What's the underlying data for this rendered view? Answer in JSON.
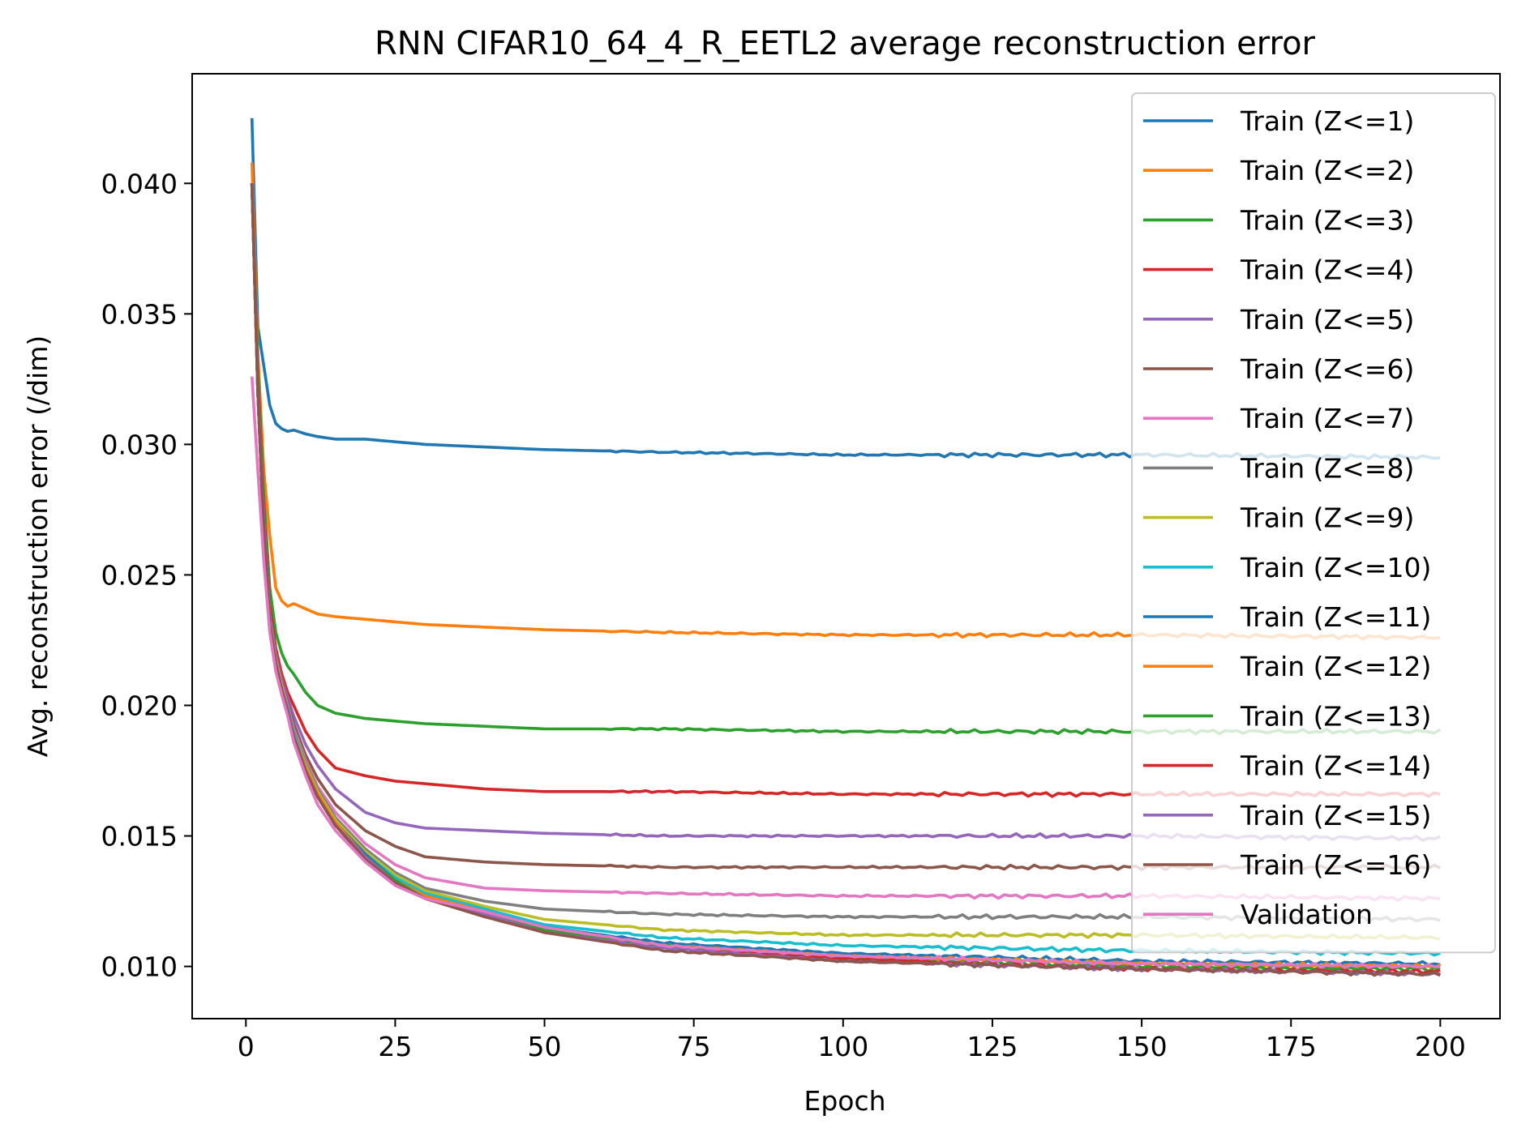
{
  "chart_data": {
    "type": "line",
    "title": "RNN CIFAR10_64_4_R_EETL2 average reconstruction error",
    "xlabel": "Epoch",
    "ylabel": "Avg. reconstruction error (/dim)",
    "xlim": [
      -9,
      210
    ],
    "ylim": [
      0.008,
      0.0442
    ],
    "xticks": [
      0,
      25,
      50,
      75,
      100,
      125,
      150,
      175,
      200
    ],
    "xtick_labels": [
      "0",
      "25",
      "50",
      "75",
      "100",
      "125",
      "150",
      "175",
      "200"
    ],
    "yticks": [
      0.01,
      0.015,
      0.02,
      0.025,
      0.03,
      0.035,
      0.04
    ],
    "ytick_labels": [
      "0.010",
      "0.015",
      "0.020",
      "0.025",
      "0.030",
      "0.035",
      "0.040"
    ],
    "grid": false,
    "legend_position": "upper-right",
    "x_keypoints": [
      1,
      2,
      3,
      4,
      5,
      6,
      7,
      8,
      10,
      12,
      15,
      20,
      25,
      30,
      40,
      50,
      70,
      100,
      150,
      200
    ],
    "series": [
      {
        "name": "Train (Z<=1)",
        "color": "#1f77b4",
        "values": [
          0.0425,
          0.0345,
          0.033,
          0.0315,
          0.0308,
          0.0306,
          0.0305,
          0.03055,
          0.0304,
          0.0303,
          0.0302,
          0.0302,
          0.0301,
          0.03,
          0.0299,
          0.0298,
          0.0297,
          0.0296,
          0.0296,
          0.0295
        ]
      },
      {
        "name": "Train (Z<=2)",
        "color": "#ff7f0e",
        "values": [
          0.0408,
          0.0335,
          0.029,
          0.0265,
          0.0245,
          0.024,
          0.0238,
          0.0239,
          0.0237,
          0.0235,
          0.0234,
          0.0233,
          0.0232,
          0.0231,
          0.023,
          0.0229,
          0.0228,
          0.0227,
          0.0227,
          0.0226
        ]
      },
      {
        "name": "Train (Z<=3)",
        "color": "#2ca02c",
        "values": [
          0.04,
          0.033,
          0.028,
          0.0245,
          0.0228,
          0.022,
          0.0215,
          0.0212,
          0.0205,
          0.02,
          0.0197,
          0.0195,
          0.0194,
          0.0193,
          0.0192,
          0.0191,
          0.0191,
          0.019,
          0.019,
          0.019
        ]
      },
      {
        "name": "Train (Z<=4)",
        "color": "#d62728",
        "values": [
          0.04,
          0.0325,
          0.0275,
          0.0238,
          0.0222,
          0.0212,
          0.0205,
          0.02,
          0.019,
          0.0183,
          0.0176,
          0.0173,
          0.0171,
          0.017,
          0.0168,
          0.0167,
          0.0167,
          0.0166,
          0.0166,
          0.0166
        ]
      },
      {
        "name": "Train (Z<=5)",
        "color": "#9467bd",
        "values": [
          0.04,
          0.0323,
          0.0272,
          0.0235,
          0.022,
          0.021,
          0.0203,
          0.0196,
          0.0185,
          0.0177,
          0.0168,
          0.0159,
          0.0155,
          0.0153,
          0.0152,
          0.0151,
          0.015,
          0.015,
          0.015,
          0.0149
        ]
      },
      {
        "name": "Train (Z<=6)",
        "color": "#8c564b",
        "values": [
          0.04,
          0.0322,
          0.027,
          0.0234,
          0.0219,
          0.0209,
          0.0201,
          0.0193,
          0.0181,
          0.0172,
          0.0162,
          0.0152,
          0.0146,
          0.0142,
          0.014,
          0.0139,
          0.0138,
          0.0138,
          0.0138,
          0.0138
        ]
      },
      {
        "name": "Train (Z<=7)",
        "color": "#e377c2",
        "values": [
          0.04,
          0.0321,
          0.0269,
          0.0233,
          0.0218,
          0.0208,
          0.02,
          0.0191,
          0.0179,
          0.0169,
          0.0159,
          0.0147,
          0.0139,
          0.0134,
          0.013,
          0.0129,
          0.0128,
          0.0127,
          0.0127,
          0.0126
        ]
      },
      {
        "name": "Train (Z<=8)",
        "color": "#7f7f7f",
        "values": [
          0.04,
          0.032,
          0.0268,
          0.0232,
          0.0217,
          0.0207,
          0.0199,
          0.019,
          0.0178,
          0.0168,
          0.0157,
          0.0145,
          0.0136,
          0.013,
          0.0125,
          0.0122,
          0.012,
          0.0119,
          0.0119,
          0.0118
        ]
      },
      {
        "name": "Train (Z<=9)",
        "color": "#bcbd22",
        "values": [
          0.04,
          0.032,
          0.0267,
          0.0232,
          0.0217,
          0.0207,
          0.0198,
          0.0189,
          0.0177,
          0.0167,
          0.0156,
          0.0144,
          0.0135,
          0.0129,
          0.0123,
          0.0118,
          0.0114,
          0.0112,
          0.0112,
          0.0111
        ]
      },
      {
        "name": "Train (Z<=10)",
        "color": "#17becf",
        "values": [
          0.04,
          0.032,
          0.0267,
          0.0232,
          0.0216,
          0.0206,
          0.0198,
          0.0189,
          0.0176,
          0.0166,
          0.0155,
          0.0143,
          0.0134,
          0.0128,
          0.0122,
          0.0116,
          0.0111,
          0.0108,
          0.0106,
          0.0105
        ]
      },
      {
        "name": "Train (Z<=11)",
        "color": "#1f77b4",
        "values": [
          0.04,
          0.032,
          0.0267,
          0.0231,
          0.0216,
          0.0206,
          0.0198,
          0.0188,
          0.0176,
          0.0166,
          0.0155,
          0.0143,
          0.0133,
          0.0127,
          0.0121,
          0.0115,
          0.0109,
          0.0105,
          0.0102,
          0.0101
        ]
      },
      {
        "name": "Train (Z<=12)",
        "color": "#ff7f0e",
        "values": [
          0.04,
          0.032,
          0.0267,
          0.0231,
          0.0216,
          0.0206,
          0.0197,
          0.0188,
          0.0176,
          0.0166,
          0.0155,
          0.0142,
          0.0133,
          0.0127,
          0.0121,
          0.0114,
          0.0108,
          0.0104,
          0.0101,
          0.01
        ]
      },
      {
        "name": "Train (Z<=13)",
        "color": "#2ca02c",
        "values": [
          0.04,
          0.032,
          0.0267,
          0.0231,
          0.0216,
          0.0206,
          0.0197,
          0.0188,
          0.0175,
          0.0165,
          0.0154,
          0.0142,
          0.0133,
          0.0126,
          0.012,
          0.0114,
          0.0108,
          0.0103,
          0.01,
          0.0099
        ]
      },
      {
        "name": "Train (Z<=14)",
        "color": "#d62728",
        "values": [
          0.04,
          0.032,
          0.0267,
          0.0231,
          0.0216,
          0.0206,
          0.0197,
          0.0188,
          0.0175,
          0.0165,
          0.0154,
          0.0142,
          0.0132,
          0.0126,
          0.012,
          0.0113,
          0.0107,
          0.0103,
          0.0099,
          0.0098
        ]
      },
      {
        "name": "Train (Z<=15)",
        "color": "#9467bd",
        "values": [
          0.04,
          0.032,
          0.0267,
          0.0231,
          0.0216,
          0.0206,
          0.0197,
          0.0188,
          0.0175,
          0.0165,
          0.0154,
          0.0142,
          0.0132,
          0.0126,
          0.012,
          0.0113,
          0.0107,
          0.0102,
          0.0099,
          0.0097
        ]
      },
      {
        "name": "Train (Z<=16)",
        "color": "#8c564b",
        "values": [
          0.04,
          0.032,
          0.0267,
          0.0231,
          0.0216,
          0.0206,
          0.0197,
          0.0188,
          0.0175,
          0.0165,
          0.0154,
          0.0141,
          0.0132,
          0.0126,
          0.0119,
          0.0113,
          0.0106,
          0.0102,
          0.0099,
          0.0097
        ]
      },
      {
        "name": "Validation",
        "color": "#e377c2",
        "values": [
          0.0326,
          0.029,
          0.0255,
          0.0228,
          0.0213,
          0.0204,
          0.0196,
          0.0186,
          0.0173,
          0.0162,
          0.0152,
          0.014,
          0.0131,
          0.0126,
          0.0121,
          0.0115,
          0.0108,
          0.0104,
          0.0101,
          0.01
        ]
      }
    ]
  }
}
